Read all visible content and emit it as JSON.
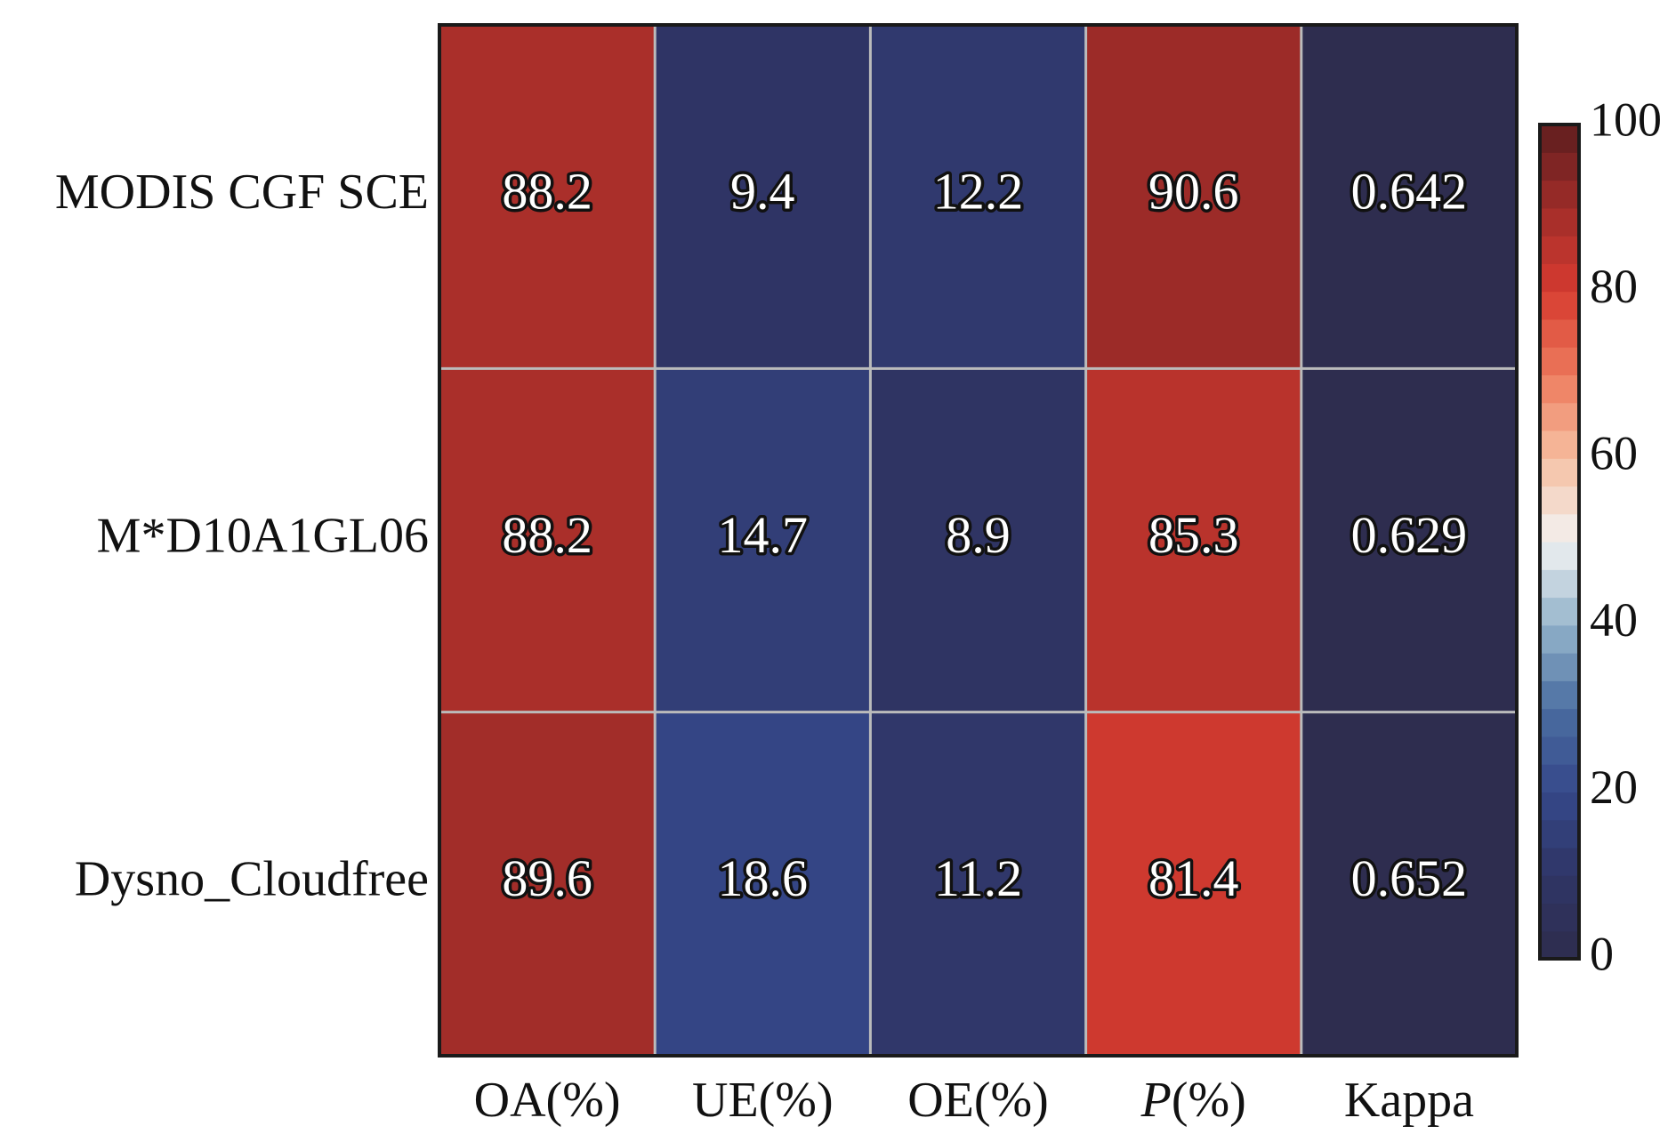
{
  "chart_data": {
    "type": "heatmap",
    "rows": [
      "MODIS CGF SCE",
      "M*D10A1GL06",
      "Dysno_Cloudfree"
    ],
    "columns": [
      {
        "label": "OA(%)",
        "italic": ""
      },
      {
        "label": "UE(%)",
        "italic": ""
      },
      {
        "label": "OE(%)",
        "italic": ""
      },
      {
        "label": "(%)",
        "italic": "P"
      },
      {
        "label": "Kappa",
        "italic": ""
      }
    ],
    "values": [
      [
        88.2,
        9.4,
        12.2,
        90.6,
        0.642
      ],
      [
        88.2,
        14.7,
        8.9,
        85.3,
        0.629
      ],
      [
        89.6,
        18.6,
        11.2,
        81.4,
        0.652
      ]
    ],
    "value_labels": [
      [
        "88.2",
        "9.4",
        "12.2",
        "90.6",
        "0.642"
      ],
      [
        "88.2",
        "14.7",
        "8.9",
        "85.3",
        "0.629"
      ],
      [
        "89.6",
        "18.6",
        "11.2",
        "81.4",
        "0.652"
      ]
    ],
    "colorbar": {
      "range": [
        0,
        100
      ],
      "ticks": [
        0,
        20,
        40,
        60,
        80,
        100
      ],
      "tick_labels": [
        "0",
        "20",
        "40",
        "60",
        "80",
        "100"
      ],
      "colormap": "diverging blue-white-red",
      "colormap_colors": [
        "#2e2c4d",
        "#2f3566",
        "#35488a",
        "#4a6da1",
        "#93b4cb",
        "#f2f2f2",
        "#f6c0a2",
        "#ed7a5c",
        "#d63b30",
        "#a02c29",
        "#5e1e1e"
      ]
    },
    "grid": true,
    "grid_color": "#bbbbbb",
    "xlabel": "",
    "ylabel": ""
  }
}
